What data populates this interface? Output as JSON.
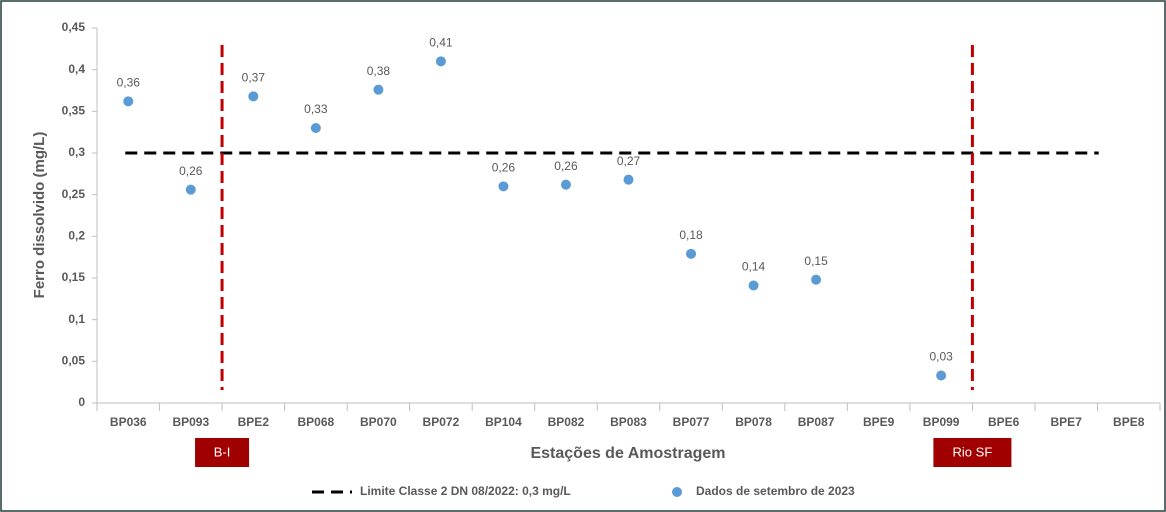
{
  "chart_data": {
    "type": "scatter",
    "y_label": "Ferro dissolvido (mg/L)",
    "x_label": "Estações de Amostragem",
    "categories": [
      "BP036",
      "BP093",
      "BPE2",
      "BP068",
      "BP070",
      "BP072",
      "BP104",
      "BP082",
      "BP083",
      "BP077",
      "BP078",
      "BP087",
      "BPE9",
      "BP099",
      "BPE6",
      "BPE7",
      "BPE8"
    ],
    "series": [
      {
        "name": "Dados de setembro de 2023",
        "color": "#5b9bd5",
        "values": [
          0.362,
          0.256,
          0.368,
          0.33,
          0.376,
          0.41,
          0.26,
          0.262,
          0.268,
          0.179,
          0.141,
          0.148,
          null,
          0.033,
          null,
          null,
          null
        ],
        "value_labels": [
          "0,36",
          "0,26",
          "0,37",
          "0,33",
          "0,38",
          "0,41",
          "0,26",
          "0,26",
          "0,27",
          "0,18",
          "0,14",
          "0,15",
          null,
          "0,03",
          null,
          null,
          null
        ]
      }
    ],
    "limit": {
      "name": "Limite Classe 2 DN 08/2022: 0,3 mg/L",
      "value": 0.3,
      "color": "#000000"
    },
    "dividers": [
      {
        "label": "B-I",
        "between": [
          "BP093",
          "BPE2"
        ]
      },
      {
        "label": "Rio SF",
        "between": [
          "BP099",
          "BPE6"
        ]
      }
    ],
    "divider_color": "#c00000",
    "ylim": [
      0,
      0.45
    ],
    "yticks": [
      0,
      {
        "value": 0.05,
        "label": "0,05"
      },
      {
        "value": 0.1,
        "label": "0,1"
      },
      {
        "value": 0.15,
        "label": "0,15"
      },
      {
        "value": 0.2,
        "label": "0,2"
      },
      {
        "value": 0.25,
        "label": "0,25"
      },
      {
        "value": 0.3,
        "label": "0,3"
      },
      {
        "value": 0.35,
        "label": "0,35"
      },
      {
        "value": 0.4,
        "label": "0,4"
      },
      {
        "value": 0.45,
        "label": "0,45"
      }
    ],
    "grid": false
  }
}
